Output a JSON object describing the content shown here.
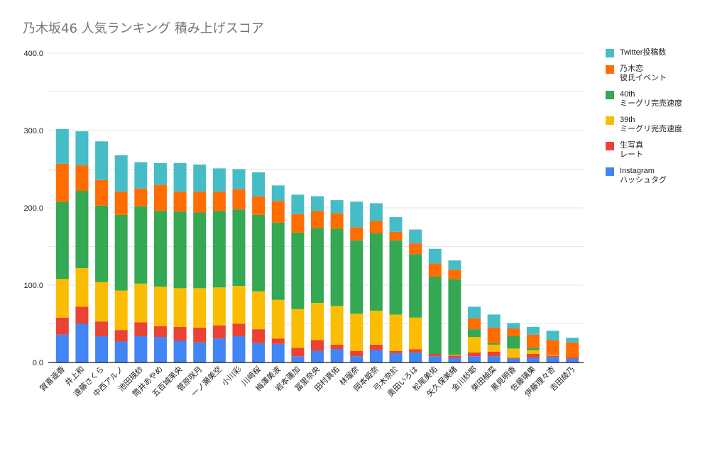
{
  "chart_data": {
    "type": "bar",
    "stacked": true,
    "title": "乃木坂46 人気ランキング 積み上げスコア",
    "xlabel": "",
    "ylabel": "",
    "ylim": [
      0,
      400
    ],
    "yticks": [
      "0.0",
      "100.0",
      "200.0",
      "300.0",
      "400.0"
    ],
    "grid": true,
    "legend_position": "right",
    "categories": [
      "賀喜遥香",
      "井上和",
      "遠藤さくら",
      "中西アルノ",
      "池田瑛紗",
      "筒井あやめ",
      "五百城茉央",
      "菅原咲月",
      "一ノ瀬美空",
      "小川彩",
      "川﨑桜",
      "梅澤美波",
      "岩本蓮加",
      "冨里奈央",
      "田村真佑",
      "林瑠奈",
      "岡本姫奈",
      "弓木奈於",
      "奥田いろは",
      "松尾美佑",
      "矢久保美緒",
      "金川紗耶",
      "柴田柚菜",
      "黒見明香",
      "佐藤璃果",
      "伊藤理々杏",
      "吉田綾乃"
    ],
    "series": [
      {
        "name": "Instagram\nハッシュタグ",
        "color": "#4285f4",
        "values": [
          36,
          50,
          34,
          27,
          34,
          33,
          28,
          26,
          31,
          34,
          25,
          24,
          8,
          15,
          17,
          8,
          16,
          12,
          13,
          8,
          6,
          8,
          8,
          5,
          6,
          7,
          5
        ]
      },
      {
        "name": "生写真\nレート",
        "color": "#ea4335",
        "values": [
          22,
          22,
          19,
          15,
          18,
          14,
          18,
          19,
          17,
          16,
          18,
          7,
          11,
          14,
          6,
          7,
          7,
          3,
          4,
          3,
          3,
          5,
          6,
          1,
          5,
          2,
          2
        ]
      },
      {
        "name": "39th\nミーグリ完売速度",
        "color": "#fbbc04",
        "values": [
          50,
          50,
          51,
          51,
          50,
          51,
          50,
          51,
          49,
          49,
          49,
          50,
          50,
          48,
          50,
          48,
          44,
          47,
          41,
          0,
          1,
          20,
          9,
          12,
          5,
          1,
          0
        ]
      },
      {
        "name": "40th\nミーグリ完売速度",
        "color": "#34a853",
        "values": [
          100,
          100,
          99,
          98,
          100,
          98,
          99,
          98,
          99,
          99,
          99,
          100,
          99,
          97,
          100,
          95,
          100,
          96,
          82,
          100,
          98,
          10,
          2,
          16,
          3,
          0,
          0
        ]
      },
      {
        "name": "乃木恋\n彼氏イベント",
        "color": "#ff6d01",
        "values": [
          49,
          33,
          33,
          30,
          23,
          34,
          26,
          27,
          25,
          26,
          24,
          28,
          24,
          22,
          20,
          17,
          16,
          11,
          14,
          17,
          12,
          14,
          20,
          10,
          17,
          19,
          19
        ]
      },
      {
        "name": "Twitter投稿数",
        "color": "#46bdc6",
        "values": [
          45,
          44,
          50,
          47,
          34,
          28,
          37,
          35,
          30,
          26,
          31,
          20,
          25,
          19,
          17,
          33,
          23,
          19,
          18,
          19,
          12,
          15,
          17,
          7,
          10,
          12,
          6
        ]
      }
    ]
  }
}
